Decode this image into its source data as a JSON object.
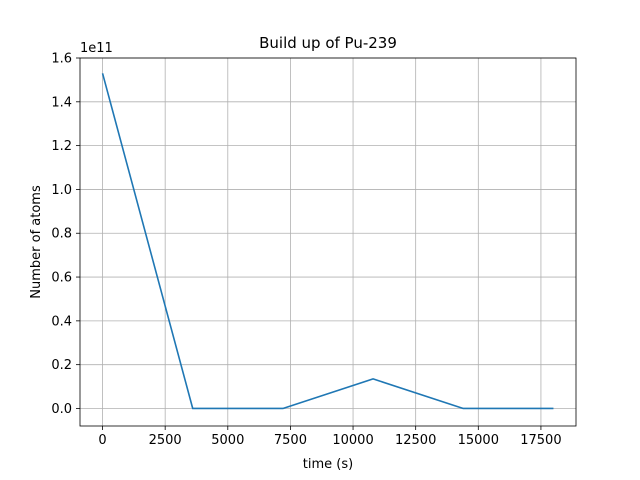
{
  "chart_data": {
    "type": "line",
    "title": "Build up of Pu-239",
    "xlabel": "time (s)",
    "ylabel": "Number of atoms",
    "y_scale_note": "1e11",
    "grid": true,
    "xlim": [
      -900,
      18900
    ],
    "ylim": [
      -0.08,
      1.6
    ],
    "x_ticks": [
      0,
      2500,
      5000,
      7500,
      10000,
      12500,
      15000,
      17500
    ],
    "x_tick_labels": [
      "0",
      "2500",
      "5000",
      "7500",
      "10000",
      "12500",
      "15000",
      "17500"
    ],
    "y_ticks": [
      0.0,
      0.2,
      0.4,
      0.6,
      0.8,
      1.0,
      1.2,
      1.4,
      1.6
    ],
    "y_tick_labels": [
      "0.0",
      "0.2",
      "0.4",
      "0.6",
      "0.8",
      "1.0",
      "1.2",
      "1.4",
      "1.6"
    ],
    "series": [
      {
        "color": "#1f77b4",
        "x": [
          0,
          3600,
          7200,
          10800,
          14400,
          18000
        ],
        "y": [
          1.53,
          0.0,
          0.0,
          0.135,
          0.0,
          0.0
        ]
      }
    ]
  }
}
